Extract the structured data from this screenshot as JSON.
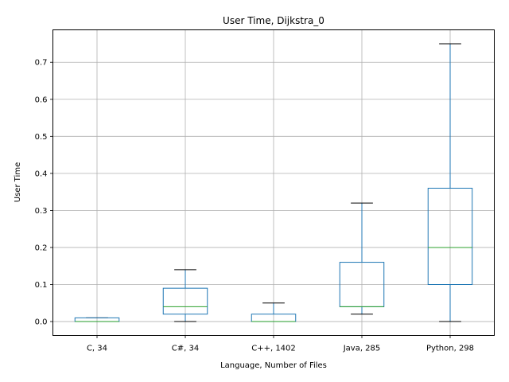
{
  "chart_data": {
    "type": "box",
    "title": "User Time, Dijkstra_0",
    "xlabel": "Language, Number of Files",
    "ylabel": "User Time",
    "ylim": [
      -0.0375,
      0.7875
    ],
    "yticks": [
      "0.0",
      "0.1",
      "0.2",
      "0.3",
      "0.4",
      "0.5",
      "0.6",
      "0.7"
    ],
    "grid": true,
    "categories": [
      "C, 34",
      "C#, 34",
      "C++, 1402",
      "Java, 285",
      "Python, 298"
    ],
    "boxes": [
      {
        "whisker_low": 0.0,
        "q1": 0.0,
        "median": 0.0,
        "q3": 0.01,
        "whisker_high": 0.01
      },
      {
        "whisker_low": 0.0,
        "q1": 0.02,
        "median": 0.04,
        "q3": 0.09,
        "whisker_high": 0.14
      },
      {
        "whisker_low": 0.0,
        "q1": 0.0,
        "median": 0.0,
        "q3": 0.02,
        "whisker_high": 0.05
      },
      {
        "whisker_low": 0.02,
        "q1": 0.04,
        "median": 0.04,
        "q3": 0.16,
        "whisker_high": 0.32
      },
      {
        "whisker_low": 0.0,
        "q1": 0.1,
        "median": 0.2,
        "q3": 0.36,
        "whisker_high": 0.75
      }
    ],
    "colors": {
      "box": "#1f77b4",
      "median": "#2ca02c",
      "whisker_cap": "#000000",
      "grid": "#b0b0b0",
      "axes": "#000000"
    }
  }
}
